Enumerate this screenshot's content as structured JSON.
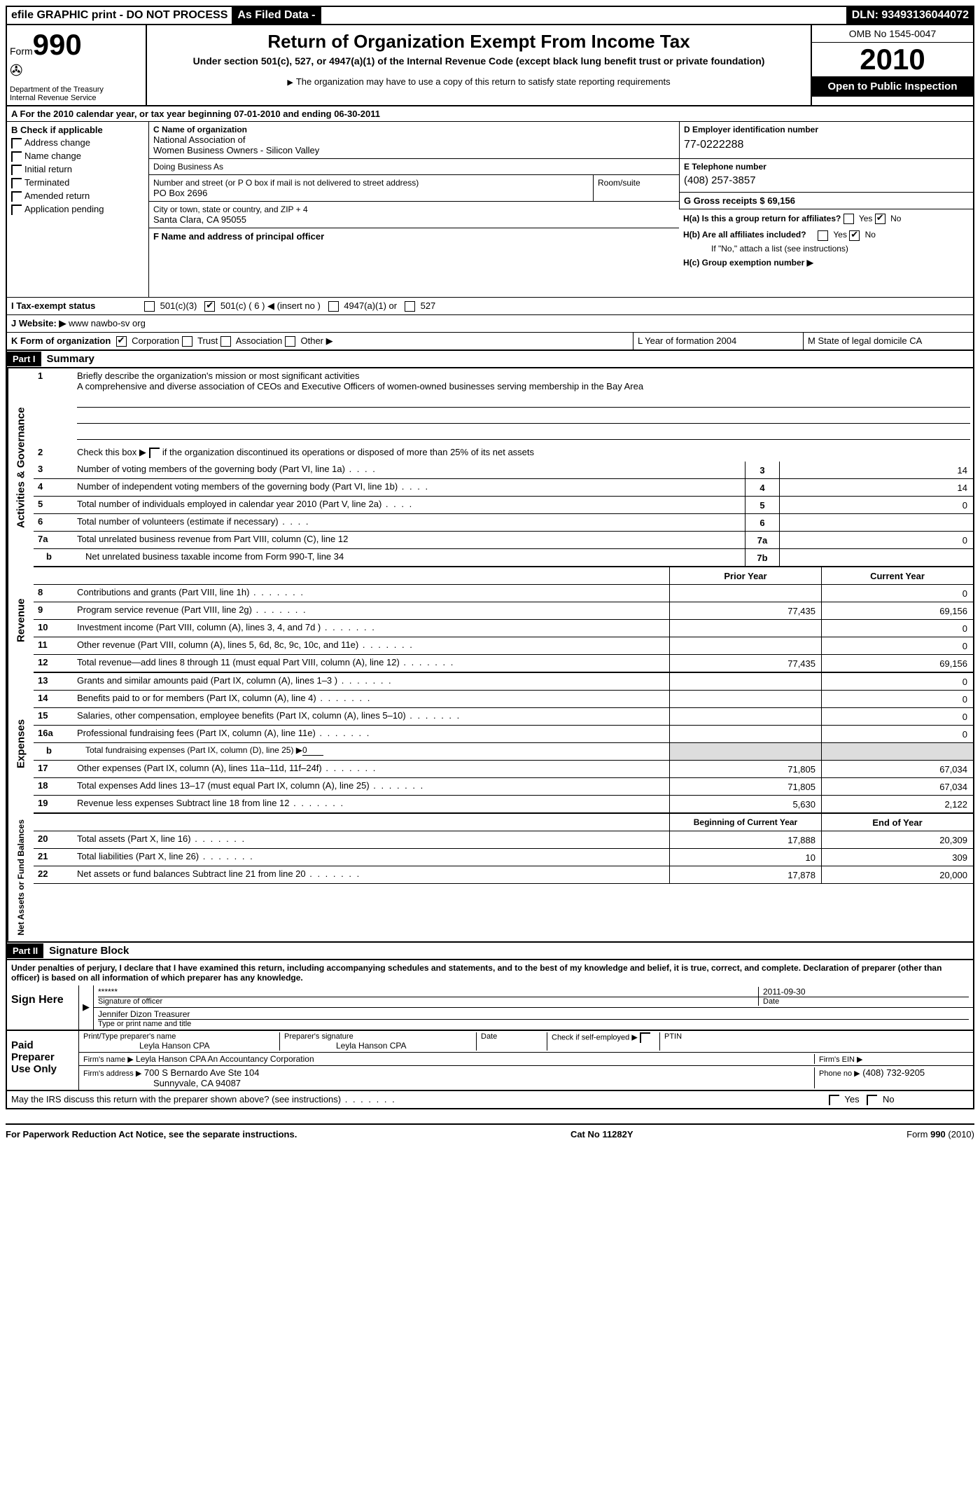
{
  "topbar": {
    "efile": "efile GRAPHIC print - DO NOT PROCESS",
    "asfiled": "As Filed Data -",
    "dln_label": "DLN:",
    "dln": "93493136044072"
  },
  "header": {
    "form_label": "Form",
    "form_number": "990",
    "dept": "Department of the Treasury\nInternal Revenue Service",
    "title": "Return of Organization Exempt From Income Tax",
    "subtitle": "Under section 501(c), 527, or 4947(a)(1) of the Internal Revenue Code (except black lung benefit trust or private foundation)",
    "note": "The organization may have to use a copy of this return to satisfy state reporting requirements",
    "omb": "OMB No 1545-0047",
    "year": "2010",
    "open_public": "Open to Public Inspection"
  },
  "row_a": "A  For the 2010 calendar year, or tax year beginning 07-01-2010    and ending 06-30-2011",
  "section_b": {
    "title": "B  Check if applicable",
    "items": [
      "Address change",
      "Name change",
      "Initial return",
      "Terminated",
      "Amended return",
      "Application pending"
    ]
  },
  "section_c": {
    "name_label": "C Name of organization",
    "name1": "National Association of",
    "name2": "Women Business Owners - Silicon Valley",
    "dba_label": "Doing Business As",
    "street_label": "Number and street (or P O  box if mail is not delivered to street address)",
    "street": "PO Box 2696",
    "room_label": "Room/suite",
    "city_label": "City or town, state or country, and ZIP + 4",
    "city": "Santa Clara, CA  95055",
    "officer_label": "F   Name and address of principal officer"
  },
  "section_d": {
    "ein_label": "D Employer identification number",
    "ein": "77-0222288",
    "phone_label": "E Telephone number",
    "phone": "(408) 257-3857",
    "gross_label": "G Gross receipts $ 69,156"
  },
  "section_h": {
    "ha": "H(a)  Is this a group return for affiliates?",
    "hb": "H(b)  Are all affiliates included?",
    "hb_note": "If \"No,\" attach a list  (see instructions)",
    "hc": "H(c)   Group exemption number ▶"
  },
  "row_i": {
    "label": "I   Tax-exempt status",
    "opts": [
      "501(c)(3)",
      "501(c) ( 6 ) ◀ (insert no )",
      "4947(a)(1) or",
      "527"
    ]
  },
  "row_j": {
    "label": "J   Website: ▶",
    "value": "www nawbo-sv org"
  },
  "row_k": {
    "label": "K Form of organization",
    "opts": [
      "Corporation",
      "Trust",
      "Association",
      "Other ▶"
    ],
    "l_label": "L Year of formation  2004",
    "m_label": "M State of legal domicile  CA"
  },
  "part1": {
    "header": "Part I",
    "title": "Summary"
  },
  "summary": {
    "line1_label": "Briefly describe the organization's mission or most significant activities",
    "line1_text": "A comprehensive and diverse association of CEOs and Executive Officers of women-owned businesses serving membership in the Bay Area",
    "line2": "Check this box ▶     if the organization discontinued its operations or disposed of more than 25% of its net assets",
    "line3": "Number of voting members of the governing body (Part VI, line 1a)",
    "line4": "Number of independent voting members of the governing body (Part VI, line 1b)",
    "line5": "Total number of individuals employed in calendar year 2010 (Part V, line 2a)",
    "line6": "Total number of volunteers (estimate if necessary)",
    "line7a": "Total unrelated business revenue from Part VIII, column (C), line 12",
    "line7b": "Net unrelated business taxable income from Form 990-T, line 34",
    "val3": "14",
    "val4": "14",
    "val5": "0",
    "val6": "",
    "val7a": "0",
    "val7b": ""
  },
  "revenue": {
    "prior_label": "Prior Year",
    "current_label": "Current Year",
    "lines": [
      {
        "n": "8",
        "t": "Contributions and grants (Part VIII, line 1h)",
        "p": "",
        "c": "0"
      },
      {
        "n": "9",
        "t": "Program service revenue (Part VIII, line 2g)",
        "p": "77,435",
        "c": "69,156"
      },
      {
        "n": "10",
        "t": "Investment income (Part VIII, column (A), lines 3, 4, and 7d )",
        "p": "",
        "c": "0"
      },
      {
        "n": "11",
        "t": "Other revenue (Part VIII, column (A), lines 5, 6d, 8c, 9c, 10c, and 11e)",
        "p": "",
        "c": "0"
      },
      {
        "n": "12",
        "t": "Total revenue—add lines 8 through 11 (must equal Part VIII, column (A), line 12)",
        "p": "77,435",
        "c": "69,156"
      }
    ]
  },
  "expenses": {
    "lines": [
      {
        "n": "13",
        "t": "Grants and similar amounts paid (Part IX, column (A), lines 1–3 )",
        "p": "",
        "c": "0"
      },
      {
        "n": "14",
        "t": "Benefits paid to or for members (Part IX, column (A), line 4)",
        "p": "",
        "c": "0"
      },
      {
        "n": "15",
        "t": "Salaries, other compensation, employee benefits (Part IX, column (A), lines 5–10)",
        "p": "",
        "c": "0"
      },
      {
        "n": "16a",
        "t": "Professional fundraising fees (Part IX, column (A), line 11e)",
        "p": "",
        "c": "0"
      }
    ],
    "line_b": "Total fundraising expenses (Part IX, column (D), line 25) ▶",
    "line_b_val": "0",
    "lines2": [
      {
        "n": "17",
        "t": "Other expenses (Part IX, column (A), lines 11a–11d, 11f–24f)",
        "p": "71,805",
        "c": "67,034"
      },
      {
        "n": "18",
        "t": "Total expenses  Add lines 13–17 (must equal Part IX, column (A), line 25)",
        "p": "71,805",
        "c": "67,034"
      },
      {
        "n": "19",
        "t": "Revenue less expenses  Subtract line 18 from line 12",
        "p": "5,630",
        "c": "2,122"
      }
    ]
  },
  "netassets": {
    "beg_label": "Beginning of Current Year",
    "end_label": "End of Year",
    "lines": [
      {
        "n": "20",
        "t": "Total assets (Part X, line 16)",
        "p": "17,888",
        "c": "20,309"
      },
      {
        "n": "21",
        "t": "Total liabilities (Part X, line 26)",
        "p": "10",
        "c": "309"
      },
      {
        "n": "22",
        "t": "Net assets or fund balances  Subtract line 21 from line 20",
        "p": "17,878",
        "c": "20,000"
      }
    ]
  },
  "part2": {
    "header": "Part II",
    "title": "Signature Block",
    "perjury": "Under penalties of perjury, I declare that I have examined this return, including accompanying schedules and statements, and to the best of my knowledge and belief, it is true, correct, and complete. Declaration of preparer (other than officer) is based on all information of which preparer has any knowledge."
  },
  "sign": {
    "left": "Sign Here",
    "stars": "******",
    "sig_label": "Signature of officer",
    "date": "2011-09-30",
    "date_label": "Date",
    "name": "Jennifer Dizon Treasurer",
    "name_label": "Type or print name and title"
  },
  "paid": {
    "left": "Paid Preparer Use Only",
    "print_label": "Print/Type preparer's name",
    "print_name": "Leyla Hanson CPA",
    "sig_label": "Preparer's signature",
    "sig_name": "Leyla Hanson CPA",
    "date_label": "Date",
    "self_label": "Check if self-employed ▶",
    "ptin_label": "PTIN",
    "firm_name_label": "Firm's name  ▶",
    "firm_name": "Leyla Hanson CPA An Accountancy Corporation",
    "firm_ein_label": "Firm's EIN   ▶",
    "firm_addr_label": "Firm's address ▶",
    "firm_addr1": "700 S Bernardo Ave Ste 104",
    "firm_addr2": "Sunnyvale, CA  94087",
    "phone_label": "Phone no  ▶",
    "phone": "(408) 732-9205"
  },
  "irs_discuss": "May the IRS discuss this return with the preparer shown above? (see instructions)",
  "footer": {
    "left": "For Paperwork Reduction Act Notice, see the separate instructions.",
    "center": "Cat No 11282Y",
    "right": "Form 990 (2010)"
  },
  "side_labels": {
    "gov": "Activities & Governance",
    "rev": "Revenue",
    "exp": "Expenses",
    "net": "Net Assets or Fund Balances"
  }
}
